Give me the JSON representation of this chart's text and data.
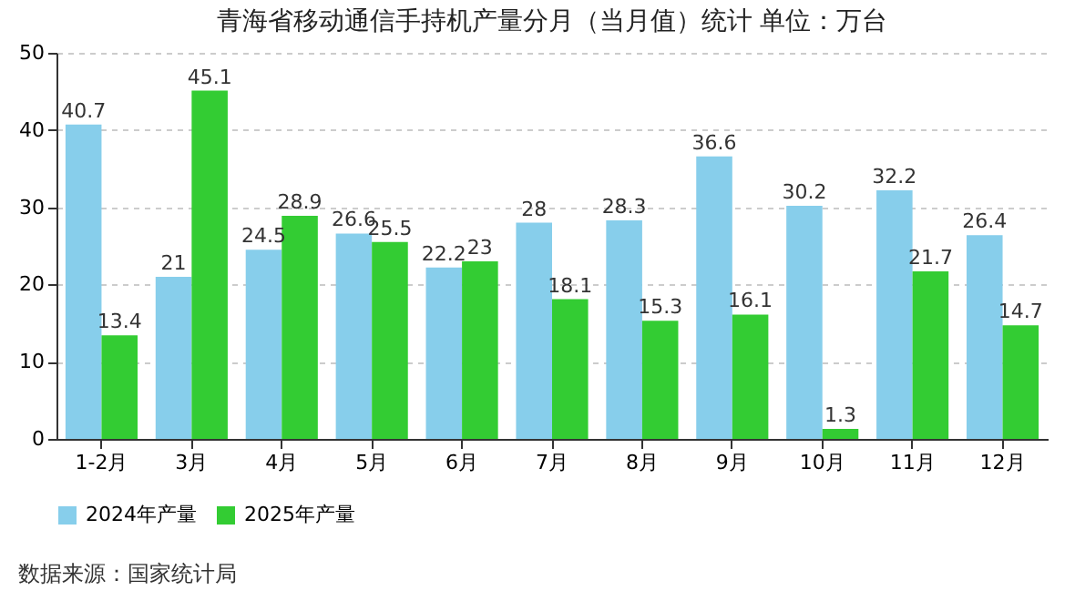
{
  "chart_data": {
    "type": "bar",
    "title": "青海省移动通信手持机产量分月（当月值）统计  单位：万台",
    "categories": [
      "1-2月",
      "3月",
      "4月",
      "5月",
      "6月",
      "7月",
      "8月",
      "9月",
      "10月",
      "11月",
      "12月"
    ],
    "series": [
      {
        "name": "2024年产量",
        "color": "#87ceeb",
        "values": [
          40.7,
          21,
          24.5,
          26.6,
          22.2,
          28,
          28.3,
          36.6,
          30.2,
          32.2,
          26.4
        ]
      },
      {
        "name": "2025年产量",
        "color": "#33cc33",
        "values": [
          13.4,
          45.1,
          28.9,
          25.5,
          23,
          18.1,
          15.3,
          16.1,
          1.3,
          21.7,
          14.7
        ]
      }
    ],
    "ylim": [
      0,
      50
    ],
    "yticks": [
      0,
      10,
      20,
      30,
      40,
      50
    ],
    "grid": "y",
    "legend": "bottom",
    "data_labels": true,
    "annotations": [
      "数据来源：国家统计局"
    ]
  }
}
